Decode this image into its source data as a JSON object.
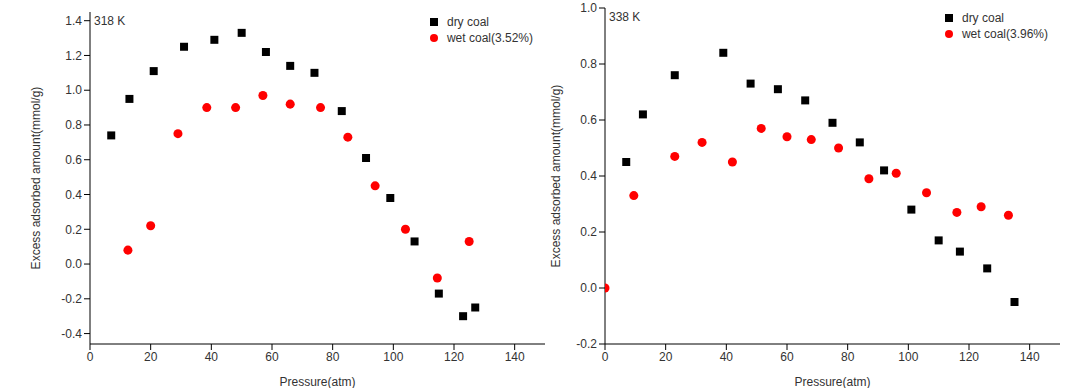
{
  "chart_data": [
    {
      "type": "scatter",
      "annotation": "318 K",
      "xlabel": "Pressure(atm)",
      "ylabel": "Excess adsorbed amount(mmol/g)",
      "xlim": [
        0,
        150
      ],
      "xticks": [
        0,
        20,
        40,
        60,
        80,
        100,
        120,
        140
      ],
      "ylim": [
        -0.46,
        1.45
      ],
      "yticks": [
        -0.4,
        -0.2,
        {
          "value": 0,
          "label": "0.0"
        },
        0.2,
        0.4,
        0.6,
        0.8,
        {
          "value": 1,
          "label": "1.0"
        },
        1.2,
        1.4
      ],
      "legend": "upper right",
      "series": [
        {
          "name": "dry coal",
          "color": "#000000",
          "marker": "square",
          "x": [
            7,
            13,
            21,
            31,
            41,
            50,
            58,
            66,
            74,
            83,
            91,
            99,
            107,
            115,
            123,
            127
          ],
          "values": [
            0.74,
            0.95,
            1.11,
            1.25,
            1.29,
            1.33,
            1.22,
            1.14,
            1.1,
            0.88,
            0.61,
            0.38,
            0.13,
            -0.17,
            -0.3,
            -0.25
          ]
        },
        {
          "name": "wet coal(3.52%)",
          "color": "#ff0000",
          "marker": "circle",
          "x": [
            12.5,
            20,
            29,
            38.5,
            48,
            57,
            66,
            76,
            85,
            94,
            104,
            114.5,
            125
          ],
          "values": [
            0.08,
            0.22,
            0.75,
            0.9,
            0.9,
            0.97,
            0.92,
            0.9,
            0.73,
            0.45,
            0.2,
            -0.08,
            0.13
          ]
        }
      ]
    },
    {
      "type": "scatter",
      "annotation": "338 K",
      "xlabel": "Pressure(atm)",
      "ylabel": "Excess adsorbed amount(mmol/g)",
      "xlim": [
        0,
        150
      ],
      "xticks": [
        0,
        20,
        40,
        60,
        80,
        100,
        120,
        140
      ],
      "ylim": [
        -0.2,
        1.0
      ],
      "yticks": [
        -0.2,
        {
          "value": 0,
          "label": "0.0"
        },
        0.2,
        0.4,
        0.6,
        0.8,
        {
          "value": 1,
          "label": "1.0"
        }
      ],
      "legend": "upper right",
      "series": [
        {
          "name": "dry coal",
          "color": "#000000",
          "marker": "square",
          "x": [
            7,
            12.5,
            23,
            39,
            48,
            57,
            66,
            75,
            84,
            92,
            101,
            110,
            117,
            126,
            135
          ],
          "values": [
            0.45,
            0.62,
            0.76,
            0.84,
            0.73,
            0.71,
            0.67,
            0.59,
            0.52,
            0.42,
            0.28,
            0.17,
            0.13,
            0.07,
            -0.05
          ]
        },
        {
          "name": "wet coal(3.96%)",
          "color": "#ff0000",
          "marker": "circle",
          "x": [
            0,
            9.5,
            23,
            32,
            42,
            51.5,
            60,
            68,
            77,
            87,
            96,
            106,
            116,
            124,
            133
          ],
          "values": [
            0.0,
            0.33,
            0.47,
            0.52,
            0.45,
            0.57,
            0.54,
            0.53,
            0.5,
            0.39,
            0.41,
            0.34,
            0.27,
            0.29,
            0.26
          ]
        }
      ]
    }
  ]
}
